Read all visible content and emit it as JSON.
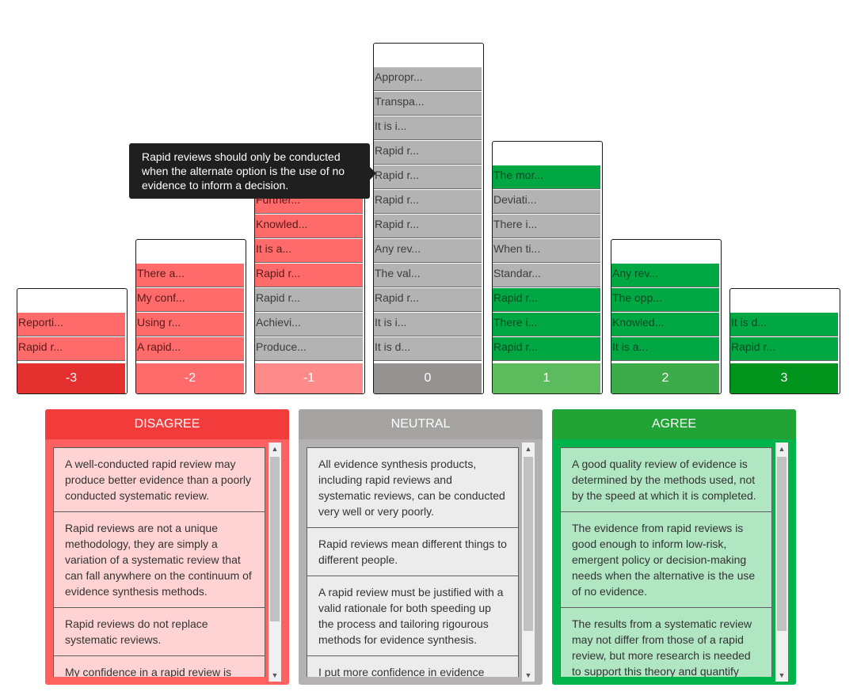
{
  "columns": [
    {
      "label": "-3",
      "footer_color": "#e53030",
      "items": [
        {
          "text": "Reporti...",
          "tone": "r"
        },
        {
          "text": "Rapid r...",
          "tone": "r"
        }
      ]
    },
    {
      "label": "-2",
      "footer_color": "#ff6b6b",
      "items": [
        {
          "text": "There a...",
          "tone": "r"
        },
        {
          "text": "My conf...",
          "tone": "r"
        },
        {
          "text": "Using r...",
          "tone": "r"
        },
        {
          "text": "A rapid...",
          "tone": "r"
        }
      ]
    },
    {
      "label": "-1",
      "footer_color": "#ff8a8a",
      "items": [
        {
          "text": "Further...",
          "tone": "r"
        },
        {
          "text": "Knowled...",
          "tone": "r"
        },
        {
          "text": "It is a...",
          "tone": "r"
        },
        {
          "text": "Rapid r...",
          "tone": "r"
        },
        {
          "text": "Rapid r...",
          "tone": "n"
        },
        {
          "text": "Achievi...",
          "tone": "n"
        },
        {
          "text": "Produce...",
          "tone": "n"
        }
      ]
    },
    {
      "label": "0",
      "footer_color": "#969292",
      "items": [
        {
          "text": "Appropr...",
          "tone": "n"
        },
        {
          "text": "Transpa...",
          "tone": "n"
        },
        {
          "text": "It is i...",
          "tone": "n"
        },
        {
          "text": "Rapid r...",
          "tone": "n"
        },
        {
          "text": "Rapid r...",
          "tone": "n"
        },
        {
          "text": "Rapid r...",
          "tone": "n"
        },
        {
          "text": "Rapid r...",
          "tone": "n"
        },
        {
          "text": "Any rev...",
          "tone": "n"
        },
        {
          "text": "The val...",
          "tone": "n"
        },
        {
          "text": "Rapid r...",
          "tone": "n"
        },
        {
          "text": "It is i...",
          "tone": "n"
        },
        {
          "text": "It is d...",
          "tone": "n"
        }
      ]
    },
    {
      "label": "1",
      "footer_color": "#5cbb5c",
      "items": [
        {
          "text": "The mor...",
          "tone": "g"
        },
        {
          "text": "Deviati...",
          "tone": "n"
        },
        {
          "text": "There i...",
          "tone": "n"
        },
        {
          "text": "When ti...",
          "tone": "n"
        },
        {
          "text": "Standar...",
          "tone": "n"
        },
        {
          "text": "Rapid r...",
          "tone": "g"
        },
        {
          "text": "There i...",
          "tone": "g"
        },
        {
          "text": "Rapid r...",
          "tone": "g"
        }
      ]
    },
    {
      "label": "2",
      "footer_color": "#3cac4a",
      "items": [
        {
          "text": "Any rev...",
          "tone": "g"
        },
        {
          "text": "The opp...",
          "tone": "g"
        },
        {
          "text": "Knowled...",
          "tone": "g"
        },
        {
          "text": "It is a...",
          "tone": "g"
        }
      ]
    },
    {
      "label": "3",
      "footer_color": "#00941c",
      "items": [
        {
          "text": "It is d...",
          "tone": "g"
        },
        {
          "text": "Rapid r...",
          "tone": "g"
        }
      ]
    }
  ],
  "tooltip": {
    "text": "Rapid reviews should only be conducted when the alternate option is the use of no evidence to inform a decision."
  },
  "panels": [
    {
      "title": "DISAGREE",
      "head_color": "#f23c3c",
      "body_color": "#ff6161",
      "card_color": "#ffd3d3",
      "cards": [
        "A well-conducted rapid review may produce better evidence than a poorly conducted systematic review.",
        "Rapid reviews are not a unique methodology, they are simply a variation of a systematic review that can fall anywhere on the continuum of evidence synthesis methods.",
        "Rapid reviews do not replace systematic reviews.",
        "My confidence in a rapid review is"
      ]
    },
    {
      "title": "NEUTRAL",
      "head_color": "#a6a3a3",
      "body_color": "#b3b1b1",
      "card_color": "#ececec",
      "cards": [
        "All evidence synthesis products, including rapid reviews and systematic reviews, can be conducted very well or very poorly.",
        "Rapid reviews mean different things to different people.",
        "A rapid review must be justified with a valid rationale for both speeding up the process and tailoring rigourous methods for evidence synthesis.",
        "I put more confidence in evidence"
      ]
    },
    {
      "title": "AGREE",
      "head_color": "#22a336",
      "body_color": "#00b34a",
      "card_color": "#b1e6c3",
      "cards": [
        "A good quality review of evidence is determined by the methods used, not by the speed at which it is completed.",
        "The evidence from rapid reviews is good enough to inform low-risk, emergent policy or decision-making needs when the alternative is the use of no evidence.",
        "The results from a systematic review may not differ from those of a rapid review, but more research is needed to support this theory and quantify"
      ]
    }
  ],
  "icons": {
    "scroll_up": "scroll-up-arrow-icon",
    "scroll_down": "scroll-down-arrow-icon"
  }
}
